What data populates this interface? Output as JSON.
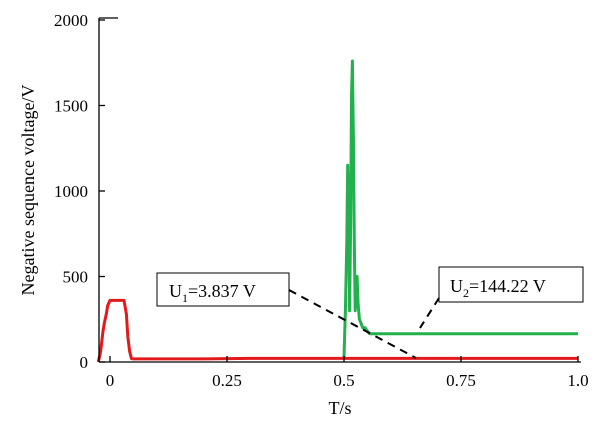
{
  "chart_data": {
    "type": "line",
    "title": "",
    "xlabel": "T/s",
    "ylabel": "Negative sequence voltage/V",
    "xlim": [
      -0.03,
      1.0
    ],
    "ylim": [
      0,
      2000
    ],
    "x_ticks": [
      0,
      0.25,
      0.5,
      0.75,
      1.0
    ],
    "x_tick_labels": [
      "0",
      "0.25",
      "0.5",
      "0.75",
      "1.0"
    ],
    "y_ticks": [
      0,
      500,
      1000,
      1500,
      2000
    ],
    "y_tick_labels": [
      "0",
      "500",
      "1000",
      "1500",
      "2000"
    ],
    "grid": false,
    "legend": "none",
    "series": [
      {
        "color": "#e31a1c",
        "points": [
          [
            -0.025,
            0
          ],
          [
            -0.02,
            60
          ],
          [
            -0.015,
            180
          ],
          [
            -0.012,
            230
          ],
          [
            -0.008,
            280
          ],
          [
            -0.005,
            330
          ],
          [
            0,
            360
          ],
          [
            0.03,
            360
          ],
          [
            0.035,
            280
          ],
          [
            0.038,
            150
          ],
          [
            0.042,
            60
          ],
          [
            0.046,
            20
          ],
          [
            0.05,
            18
          ],
          [
            0.1,
            18
          ],
          [
            0.2,
            18
          ],
          [
            0.3,
            21
          ],
          [
            0.4,
            21
          ],
          [
            0.5,
            21
          ],
          [
            0.6,
            21
          ],
          [
            0.7,
            21
          ],
          [
            0.8,
            21
          ],
          [
            0.9,
            21
          ],
          [
            1.0,
            21
          ]
        ]
      },
      {
        "color": "#22b14c",
        "points": [
          [
            0.5,
            30
          ],
          [
            0.503,
            300
          ],
          [
            0.506,
            700
          ],
          [
            0.508,
            1150
          ],
          [
            0.51,
            900
          ],
          [
            0.512,
            300
          ],
          [
            0.514,
            800
          ],
          [
            0.516,
            1550
          ],
          [
            0.518,
            1760
          ],
          [
            0.52,
            1300
          ],
          [
            0.522,
            700
          ],
          [
            0.524,
            300
          ],
          [
            0.526,
            400
          ],
          [
            0.528,
            500
          ],
          [
            0.53,
            350
          ],
          [
            0.533,
            250
          ],
          [
            0.536,
            230
          ],
          [
            0.54,
            200
          ],
          [
            0.545,
            200
          ],
          [
            0.55,
            180
          ],
          [
            0.555,
            165
          ],
          [
            0.6,
            165
          ],
          [
            0.7,
            165
          ],
          [
            0.8,
            165
          ],
          [
            0.9,
            165
          ],
          [
            1.0,
            165
          ]
        ]
      }
    ],
    "annotations": [
      {
        "name": "u1",
        "main": "U",
        "sub": "1",
        "rest": "=3.837 V"
      },
      {
        "name": "u2",
        "main": "U",
        "sub": "2",
        "rest": "=144.22 V"
      }
    ]
  }
}
